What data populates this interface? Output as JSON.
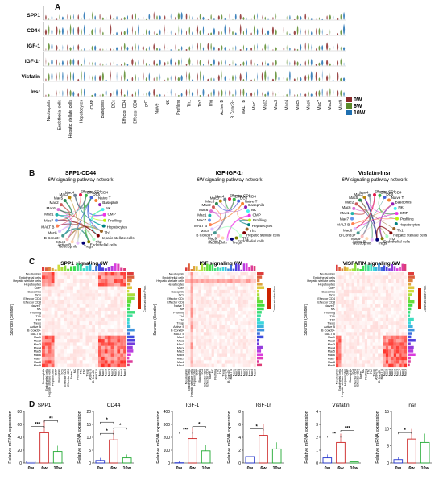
{
  "panel_labels": [
    "A",
    "B",
    "C",
    "D"
  ],
  "panelA": {
    "genes": [
      "SPP1",
      "CD44",
      "IGF-1",
      "IGF-1r",
      "Visfatin",
      "Insr"
    ],
    "cell_types": [
      "Neutrophils",
      "Endothelial cells",
      "Hepatic stellate cells",
      "Hepatocytes",
      "CMP",
      "Basophils",
      "DCs",
      "Effector CD4",
      "Effector CD8",
      "gdT",
      "Naive T",
      "NK",
      "Profiling",
      "Th1",
      "Th2",
      "Thg",
      "Active B",
      "B Cond3+",
      "MALT B",
      "Mac1",
      "Mac2",
      "Mac3",
      "Mac4",
      "Mac5",
      "Mac6",
      "Mac7",
      "Mac8",
      "Mac9"
    ],
    "legend": [
      {
        "label": "0W",
        "color": "#8b2a2a"
      },
      {
        "label": "6W",
        "color": "#5a8a2a"
      },
      {
        "label": "10W",
        "color": "#1f6fb0"
      }
    ]
  },
  "panelB": {
    "networks": [
      {
        "title": "SPP1-CD44",
        "subtitle": "6W signaling pathway network"
      },
      {
        "title": "IGF-IGF-1r",
        "subtitle": "6W signaling pathway network"
      },
      {
        "title": "Visfatin-Insr",
        "subtitle": "6W signaling pathway network"
      }
    ],
    "nodes": [
      "Effector CD8",
      "Effector CD4",
      "DCs",
      "Naive T",
      "Basophils",
      "NK",
      "CMP",
      "Profiling",
      "Hepatocytes",
      "Th1",
      "Hepatic stellate cells",
      "Th2",
      "Endothelial cells",
      "Tregs",
      "Neutrophils",
      "Active B",
      "Mac9",
      "B Cond3+",
      "Mac8",
      "MALT B",
      "Mac7",
      "Mac1",
      "Mac6",
      "Mac2",
      "Mac5",
      "Mac3",
      "Mac4"
    ]
  },
  "panelC": {
    "titles": [
      "SPP1 signaling  6W",
      "IGF signaling  6W",
      "VISFATIN signaling  6W"
    ],
    "ylabel": "Sources (Sender)",
    "legend_title": "Communication Prob.",
    "rows": [
      "Neutrophils",
      "Endothelial cells",
      "Hepatic stellate cells",
      "Hepatocytes",
      "CMP",
      "Basophils",
      "DCs",
      "Effector CD4",
      "Effector CD8",
      "Naive T",
      "NK",
      "Profiling",
      "Th1",
      "Th2",
      "Tregs",
      "Active B",
      "B Cond3+",
      "MALT B",
      "Mac1",
      "Mac2",
      "Mac3",
      "Mac4",
      "Mac5",
      "Mac6",
      "Mac7",
      "Mac8",
      "Mac9"
    ],
    "cols": [
      "Neutrophils",
      "Endothelial cells",
      "Hepatic stellate cells",
      "Hepatocytes",
      "CMP",
      "Basophils",
      "DCs",
      "Effector CD4",
      "Effector CD8",
      "Naive T",
      "NK",
      "Profiling",
      "Th1",
      "Th2",
      "Tregs",
      "Active B",
      "B Cond3+",
      "MALT B",
      "Mac1",
      "Mac2",
      "Mac3",
      "Mac4",
      "Mac5",
      "Mac6",
      "Mac7",
      "Mac8",
      "Mac9"
    ]
  },
  "chart_data": [
    {
      "type": "bar",
      "title": "SPP1",
      "ylabel": "Relative mRNA expression",
      "categories": [
        "0w",
        "6w",
        "10w"
      ],
      "values": [
        3,
        47,
        18
      ],
      "yticks": [
        "0",
        "20",
        "40",
        "60",
        "80"
      ],
      "ylim": [
        0,
        80
      ],
      "sig": [
        "***",
        "**"
      ],
      "colors": [
        "#2233cc",
        "#cc2222",
        "#22aa33"
      ]
    },
    {
      "type": "bar",
      "title": "CD44",
      "ylabel": "Relative mRNA expression",
      "categories": [
        "0w",
        "6w",
        "10w"
      ],
      "values": [
        1,
        9,
        2
      ],
      "yticks": [
        "0",
        "5",
        "10",
        "15",
        "20"
      ],
      "ylim": [
        0,
        20
      ],
      "sig": [
        "*",
        "*",
        "*"
      ],
      "colors": [
        "#2233cc",
        "#cc2222",
        "#22aa33"
      ]
    },
    {
      "type": "bar",
      "title": "IGF-1",
      "ylabel": "Relative mRNA expression",
      "categories": [
        "0w",
        "6w",
        "10w"
      ],
      "values": [
        2,
        190,
        95
      ],
      "yticks": [
        "0",
        "100",
        "200",
        "300",
        "400"
      ],
      "ylim": [
        0,
        400
      ],
      "sig": [
        "***",
        "*"
      ],
      "colors": [
        "#2233cc",
        "#cc2222",
        "#22aa33"
      ]
    },
    {
      "type": "bar",
      "title": "IGF-1r",
      "ylabel": "Relative mRNA expression",
      "categories": [
        "0w",
        "6w",
        "10w"
      ],
      "values": [
        1,
        4.3,
        2.2
      ],
      "yticks": [
        "0",
        "2",
        "4",
        "6",
        "8"
      ],
      "ylim": [
        0,
        8
      ],
      "sig": [
        "*"
      ],
      "colors": [
        "#2233cc",
        "#cc2222",
        "#22aa33"
      ]
    },
    {
      "type": "bar",
      "title": "Visfatin",
      "ylabel": "Relative mRNA expression",
      "categories": [
        "0w",
        "6w",
        "10w"
      ],
      "values": [
        0.4,
        1.6,
        0.1
      ],
      "yticks": [
        "0",
        "1",
        "2",
        "3",
        "4"
      ],
      "ylim": [
        0,
        4
      ],
      "sig": [
        "**",
        "***"
      ],
      "colors": [
        "#2233cc",
        "#cc2222",
        "#22aa33"
      ]
    },
    {
      "type": "bar",
      "title": "Insr",
      "ylabel": "Relative mRNA expression",
      "categories": [
        "0w",
        "6w",
        "10w"
      ],
      "values": [
        1,
        7,
        6
      ],
      "yticks": [
        "0",
        "5",
        "10",
        "15"
      ],
      "ylim": [
        0,
        15
      ],
      "sig": [
        "*"
      ],
      "colors": [
        "#2233cc",
        "#cc2222",
        "#22aa33"
      ]
    }
  ]
}
